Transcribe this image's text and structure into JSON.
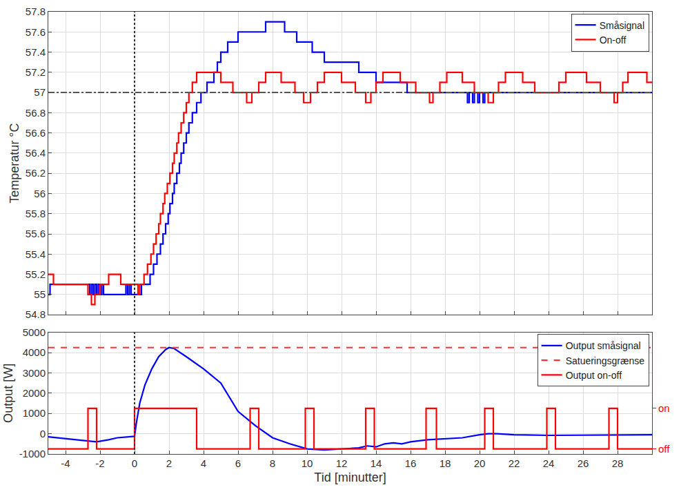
{
  "chart_data": [
    {
      "type": "line",
      "y_label": "Temperatur °C",
      "xlim": [
        -5,
        30
      ],
      "xticks": [
        -4,
        -2,
        0,
        2,
        4,
        6,
        8,
        10,
        12,
        14,
        16,
        18,
        20,
        22,
        24,
        26,
        28
      ],
      "ylim": [
        54.8,
        57.8
      ],
      "yticks": [
        54.8,
        55,
        55.2,
        55.4,
        55.6,
        55.8,
        56,
        56.2,
        56.4,
        56.6,
        56.8,
        57,
        57.2,
        57.4,
        57.6,
        57.8
      ],
      "grid": true,
      "legend": "upper right",
      "tick_labels": "y",
      "line_style": "step",
      "reference_lines": [
        {
          "axis": "y",
          "value": 57,
          "color": "#555555",
          "line_style": "dashdot"
        },
        {
          "axis": "x",
          "value": 0,
          "color": "#333333",
          "line_style": "dot"
        }
      ],
      "series": [
        {
          "name": "Småsignal",
          "color": "#0000ff",
          "x": [
            -5,
            -4.9,
            -2.6,
            -2.5,
            -2.4,
            -2.3,
            -2.2,
            -2.1,
            -2.0,
            -1.9,
            -1.8,
            -0.5,
            -0.4,
            -0.3,
            -0.2,
            0.4,
            0.9,
            1.1,
            1.3,
            1.5,
            1.65,
            1.8,
            1.95,
            2.05,
            2.2,
            2.3,
            2.45,
            2.6,
            2.7,
            2.85,
            3.0,
            3.15,
            3.35,
            3.6,
            3.85,
            4.2,
            4.6,
            4.8,
            5.0,
            5.4,
            6.0,
            7.6,
            8.7,
            9.4,
            10.3,
            11.0,
            13.0,
            14.0,
            15.8,
            19.3,
            19.4,
            19.6,
            19.7,
            19.9,
            20.0,
            20.2,
            20.3,
            30
          ],
          "values": [
            55.0,
            55.1,
            55.0,
            55.1,
            55.0,
            55.1,
            55.0,
            55.1,
            55.0,
            55.1,
            55.0,
            55.1,
            55.0,
            55.1,
            55.0,
            55.1,
            55.2,
            55.3,
            55.4,
            55.5,
            55.6,
            55.7,
            55.8,
            55.9,
            56.0,
            56.1,
            56.2,
            56.3,
            56.4,
            56.5,
            56.6,
            56.7,
            56.8,
            56.9,
            57.0,
            57.1,
            57.2,
            57.3,
            57.4,
            57.5,
            57.6,
            57.7,
            57.6,
            57.5,
            57.4,
            57.3,
            57.2,
            57.1,
            57.0,
            56.9,
            57.0,
            56.9,
            57.0,
            56.9,
            57.0,
            56.9,
            57.0,
            57.0
          ]
        },
        {
          "name": "On-off",
          "color": "#ff0000",
          "x": [
            -5,
            -4.7,
            -2.7,
            -2.5,
            -2.3,
            -2.0,
            -1.5,
            -0.8,
            0.2,
            0.3,
            0.55,
            0.75,
            0.95,
            1.1,
            1.25,
            1.4,
            1.5,
            1.65,
            1.75,
            1.9,
            2.05,
            2.2,
            2.3,
            2.45,
            2.55,
            2.7,
            2.85,
            3.0,
            3.15,
            3.35,
            3.6,
            5.0,
            5.7,
            6.5,
            6.8,
            7.2,
            7.6,
            8.5,
            9.3,
            9.8,
            10.2,
            10.6,
            11.0,
            12.0,
            12.8,
            13.4,
            13.7,
            14.0,
            14.4,
            15.4,
            16.3,
            17.1,
            17.3,
            17.7,
            18.1,
            19.0,
            19.7,
            20.5,
            20.8,
            21.1,
            21.5,
            22.5,
            23.2,
            24.6,
            25.0,
            26.2,
            27.0,
            27.8,
            28.0,
            28.3,
            28.6,
            29.7,
            30
          ],
          "values": [
            55.2,
            55.1,
            55.0,
            54.9,
            55.0,
            55.1,
            55.2,
            55.1,
            55.0,
            55.1,
            55.2,
            55.3,
            55.4,
            55.5,
            55.6,
            55.7,
            55.8,
            55.9,
            56.0,
            56.1,
            56.2,
            56.3,
            56.4,
            56.5,
            56.6,
            56.7,
            56.8,
            56.9,
            57.0,
            57.1,
            57.2,
            57.1,
            57.0,
            56.9,
            57.0,
            57.1,
            57.2,
            57.1,
            57.0,
            56.9,
            57.0,
            57.1,
            57.2,
            57.1,
            57.0,
            56.9,
            57.0,
            57.1,
            57.2,
            57.1,
            57.0,
            56.9,
            57.0,
            57.1,
            57.2,
            57.1,
            57.0,
            56.9,
            57.0,
            57.1,
            57.2,
            57.1,
            57.0,
            57.1,
            57.2,
            57.1,
            57.0,
            56.9,
            57.0,
            57.1,
            57.2,
            57.1,
            57.1
          ]
        }
      ]
    },
    {
      "type": "line",
      "x_label": "Tid [minutter]",
      "y_label": "Output [W]",
      "xlim": [
        -5,
        30
      ],
      "xticks": [
        -4,
        -2,
        0,
        2,
        4,
        6,
        8,
        10,
        12,
        14,
        16,
        18,
        20,
        22,
        24,
        26,
        28
      ],
      "ylim": [
        -1000,
        5000
      ],
      "yticks": [
        -1000,
        0,
        1000,
        2000,
        3000,
        4000,
        5000
      ],
      "y2lim": [
        -1000,
        5000
      ],
      "y2ticks": [
        {
          "value": 1250,
          "label": "on"
        },
        {
          "value": -750,
          "label": "off"
        }
      ],
      "grid": true,
      "legend": "upper right",
      "reference_lines": [
        {
          "axis": "x",
          "value": 0,
          "color": "#333333",
          "line_style": "dot"
        }
      ],
      "series": [
        {
          "name": "Output småsignal",
          "color": "#0000ff",
          "line_style": "solid",
          "x": [
            -5,
            -4,
            -3,
            -2.2,
            -1.5,
            -1,
            -0.2,
            0,
            0.1,
            0.3,
            0.6,
            1.0,
            1.4,
            1.8,
            2.0,
            2.3,
            3,
            4,
            5,
            6,
            7,
            8,
            9,
            10,
            11,
            12,
            13,
            13.5,
            14,
            14.5,
            15,
            15.5,
            16,
            17,
            18,
            19,
            20,
            20.5,
            21,
            22,
            24,
            26,
            28,
            30
          ],
          "values": [
            -150,
            -250,
            -330,
            -400,
            -300,
            -200,
            -150,
            -130,
            500,
            1500,
            2400,
            3200,
            3800,
            4150,
            4250,
            4200,
            3800,
            3200,
            2500,
            1100,
            400,
            -200,
            -500,
            -750,
            -800,
            -760,
            -700,
            -600,
            -650,
            -500,
            -450,
            -500,
            -400,
            -300,
            -250,
            -200,
            -50,
            0,
            0,
            -50,
            -80,
            -70,
            -60,
            -50
          ]
        },
        {
          "name": "Satueringsgrænse",
          "color": "#ff3333",
          "line_style": "dash",
          "x": [
            -5,
            30
          ],
          "values": [
            4250,
            4250
          ]
        },
        {
          "name": "Output on-off",
          "color": "#ff0000",
          "line_style": "step",
          "axis": "y2",
          "x": [
            -5,
            -2.7,
            -2.2,
            0,
            3.6,
            6.7,
            7.2,
            9.9,
            10.4,
            13.4,
            13.9,
            16.9,
            17.5,
            20.3,
            20.8,
            23.9,
            24.4,
            27.5,
            28.0,
            30
          ],
          "values": [
            -750,
            1250,
            -750,
            1250,
            -750,
            1250,
            -750,
            1250,
            -750,
            1250,
            -750,
            1250,
            -750,
            1250,
            -750,
            1250,
            -750,
            1250,
            -750,
            -750
          ]
        }
      ]
    }
  ]
}
